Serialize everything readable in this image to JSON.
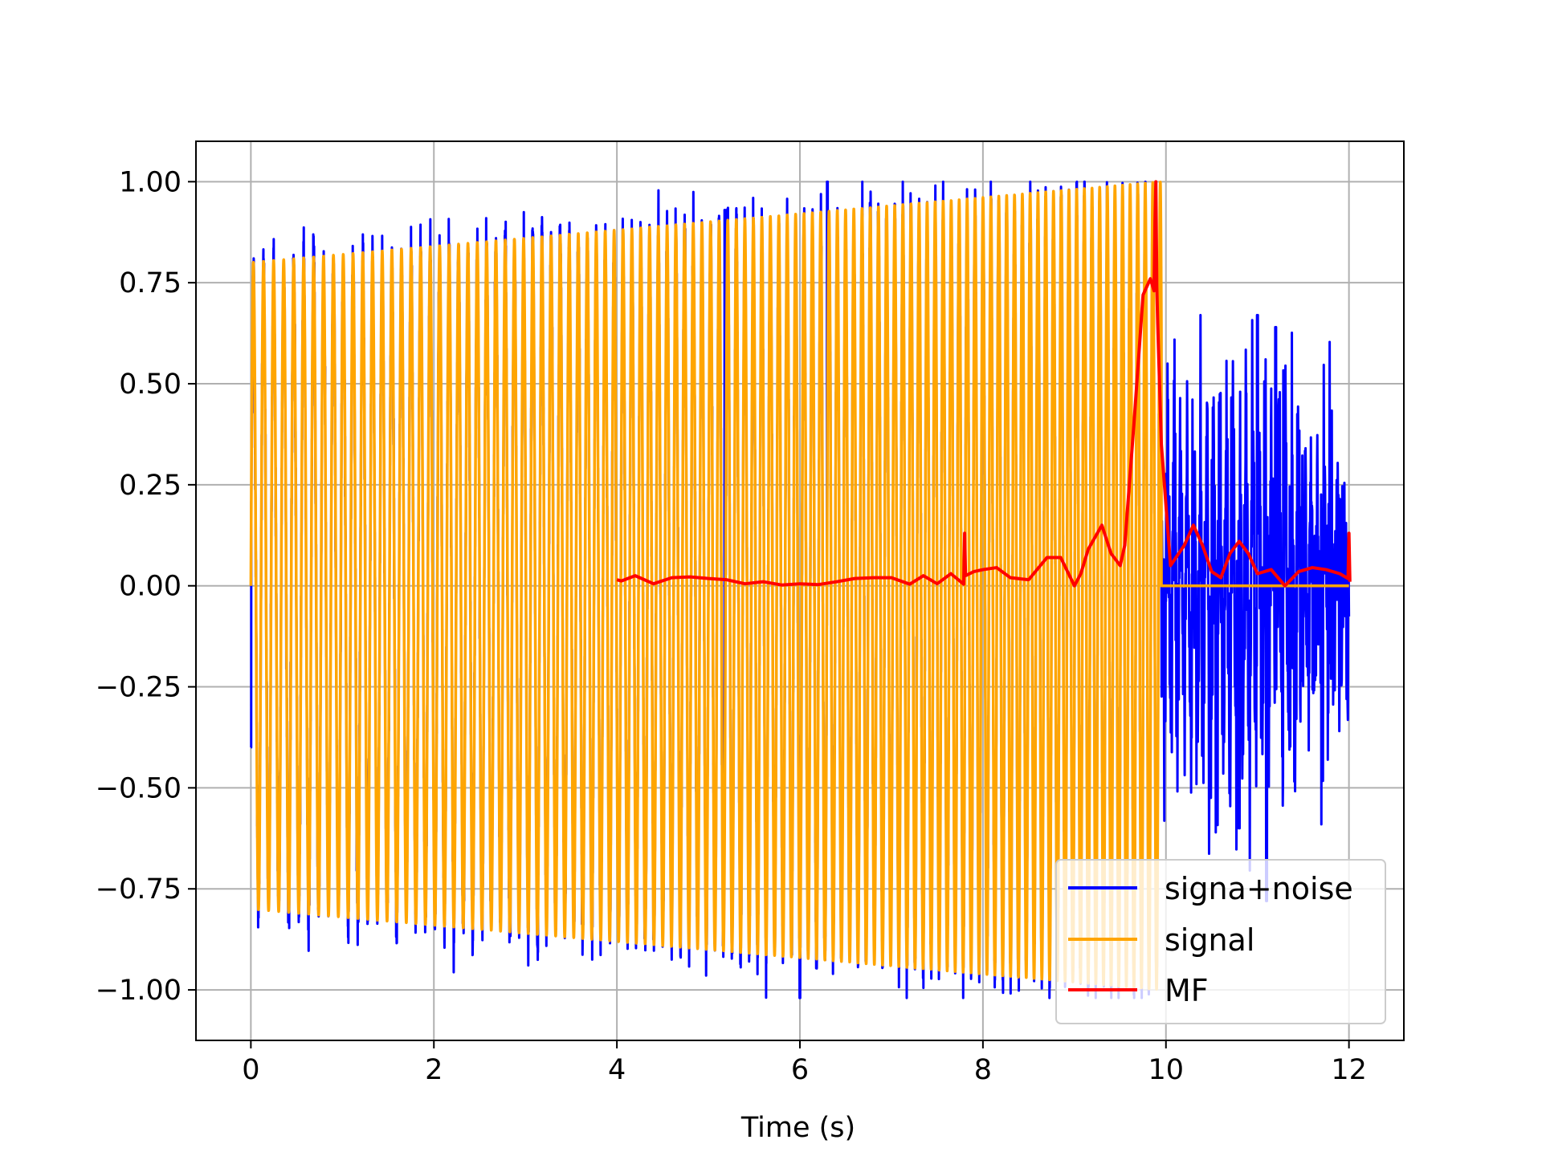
{
  "chart_data": {
    "type": "line",
    "title": "",
    "xlabel": "Time (s)",
    "ylabel": "",
    "xlim": [
      -0.6,
      12.6
    ],
    "ylim": [
      -1.125,
      1.1
    ],
    "xticks": [
      0,
      2,
      4,
      6,
      8,
      10,
      12
    ],
    "xtick_labels": [
      "0",
      "2",
      "4",
      "6",
      "8",
      "10",
      "12"
    ],
    "yticks": [
      1.0,
      0.75,
      0.5,
      0.25,
      0.0,
      -0.25,
      -0.5,
      -0.75,
      -1.0
    ],
    "ytick_labels": [
      "1.00",
      "0.75",
      "0.50",
      "0.25",
      "0.00",
      "−0.25",
      "−0.50",
      "−0.75",
      "−1.00"
    ],
    "grid": true,
    "legend_position": "lower-right",
    "series": [
      {
        "name": "signa+noise",
        "color": "#0000ff",
        "description": "noisy chirp 0-10 s, pure noise 10-12 s",
        "peaks": [
          {
            "x": 0.0,
            "y": -0.4
          },
          {
            "x": 5.18,
            "y": 0.93
          },
          {
            "x": 6.0,
            "y": -1.02
          },
          {
            "x": 6.3,
            "y": 1.0
          },
          {
            "x": 10.8,
            "y": -0.6
          },
          {
            "x": 11.1,
            "y": -0.78
          },
          {
            "x": 11.2,
            "y": 0.64
          },
          {
            "x": 11.0,
            "y": 0.67
          }
        ]
      },
      {
        "name": "signal",
        "color": "#ffa500",
        "description": "chirp from t=0 to t=9.95 s, amplitude 0.8 rising to 1.0, zero afterwards",
        "x_start": 0.0,
        "x_end": 9.95,
        "amplitude_start": 0.8,
        "amplitude_end": 1.0,
        "post_value": 0.0
      },
      {
        "name": "MF",
        "color": "#ff0000",
        "x": [
          4.0,
          4.05,
          4.2,
          4.4,
          4.6,
          4.8,
          5.0,
          5.2,
          5.4,
          5.6,
          5.8,
          6.0,
          6.2,
          6.4,
          6.6,
          6.8,
          7.0,
          7.2,
          7.35,
          7.5,
          7.65,
          7.79,
          7.8,
          7.81,
          7.9,
          8.0,
          8.15,
          8.3,
          8.5,
          8.7,
          8.85,
          9.0,
          9.07,
          9.15,
          9.3,
          9.4,
          9.5,
          9.55,
          9.65,
          9.75,
          9.83,
          9.87,
          9.88,
          9.89,
          9.9,
          9.91,
          9.95,
          10.05,
          10.2,
          10.3,
          10.4,
          10.5,
          10.6,
          10.7,
          10.8,
          10.9,
          11.0,
          11.15,
          11.3,
          11.45,
          11.6,
          11.75,
          11.9,
          11.99,
          12.0,
          12.01
        ],
        "y": [
          0.015,
          0.012,
          0.025,
          0.005,
          0.02,
          0.022,
          0.018,
          0.015,
          0.005,
          0.01,
          0.002,
          0.005,
          0.003,
          0.01,
          0.018,
          0.02,
          0.02,
          0.004,
          0.025,
          0.005,
          0.03,
          0.004,
          0.13,
          0.025,
          0.035,
          0.04,
          0.045,
          0.02,
          0.015,
          0.07,
          0.07,
          0.0,
          0.03,
          0.09,
          0.15,
          0.08,
          0.05,
          0.1,
          0.4,
          0.72,
          0.76,
          0.73,
          0.9,
          1.0,
          0.74,
          0.65,
          0.35,
          0.05,
          0.1,
          0.15,
          0.1,
          0.035,
          0.02,
          0.08,
          0.11,
          0.08,
          0.03,
          0.04,
          0.0,
          0.035,
          0.045,
          0.04,
          0.03,
          0.018,
          0.13,
          0.01
        ]
      }
    ]
  }
}
